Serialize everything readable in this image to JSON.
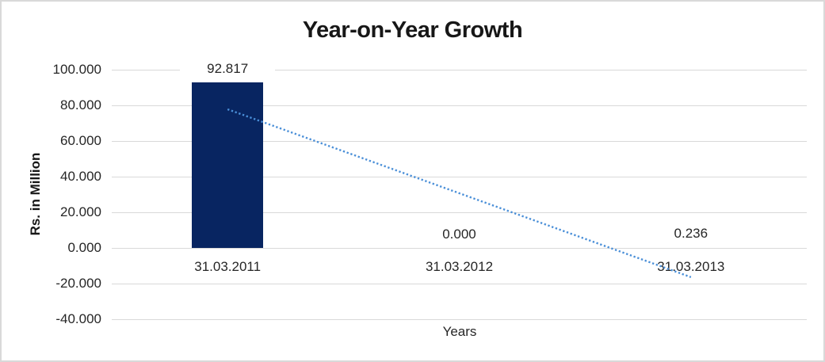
{
  "chart_data": {
    "type": "bar",
    "title": "Year-on-Year Growth",
    "categories": [
      "31.03.2011",
      "31.03.2012",
      "31.03.2013"
    ],
    "values": [
      92.817,
      0.0,
      0.236
    ],
    "data_labels": [
      "92.817",
      "0.000",
      "0.236"
    ],
    "xlabel": "Years",
    "ylabel": "Rs. in Million",
    "ylim": [
      -40,
      100
    ],
    "ytick_step": 20,
    "ytick_labels": [
      "100.000",
      "80.000",
      "60.000",
      "40.000",
      "20.000",
      "0.000",
      "-20.000",
      "-40.000"
    ],
    "grid": true,
    "legend": false,
    "colors": {
      "bar": "#082561",
      "trendline": "#4a8fd8",
      "gridline": "#d9d9d9",
      "text": "#262626",
      "frame_border": "#d9d9d9"
    },
    "trendline": {
      "type": "linear",
      "style": "dotted",
      "start_value": 77.8,
      "end_value": -16.4
    }
  }
}
